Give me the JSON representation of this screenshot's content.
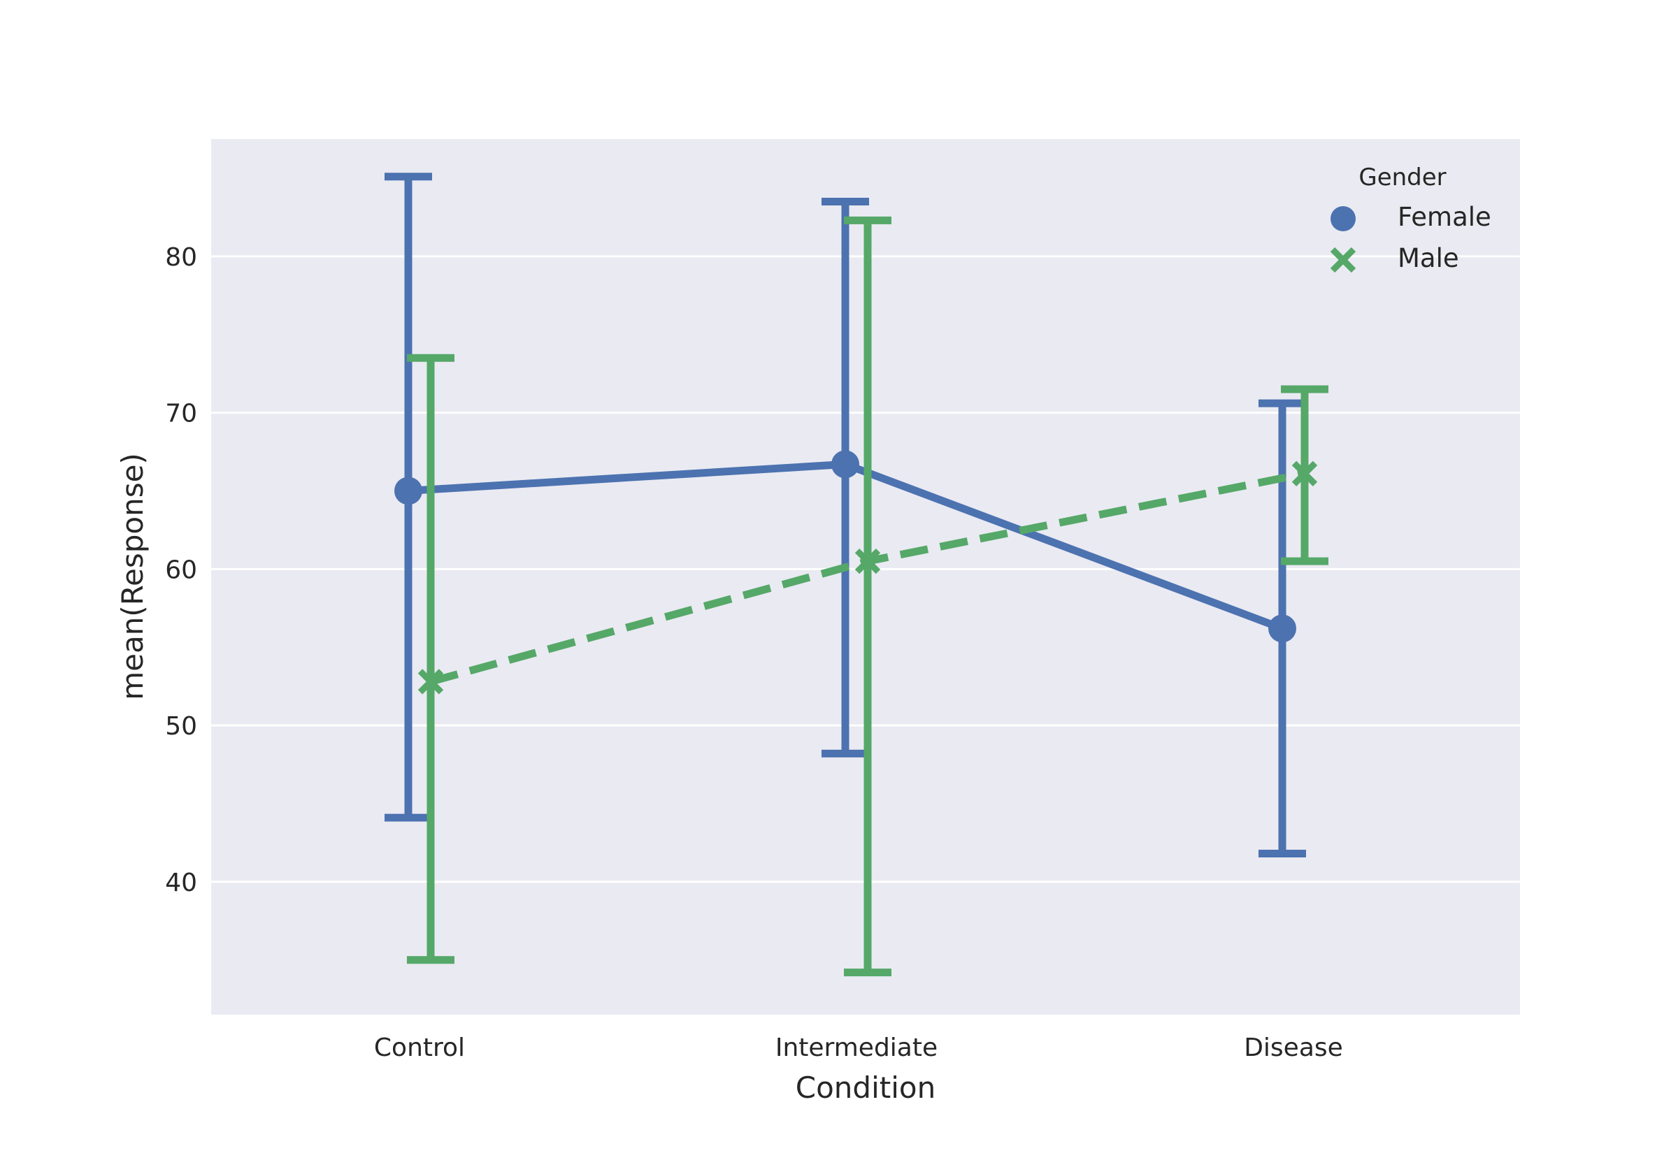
{
  "chart_data": {
    "type": "line",
    "xlabel": "Condition",
    "ylabel": "mean(Response)",
    "categories": [
      "Control",
      "Intermediate",
      "Disease"
    ],
    "ylim": [
      31.5,
      87.5
    ],
    "yticks": [
      40,
      50,
      60,
      70,
      80
    ],
    "grid": true,
    "legend": {
      "title": "Gender",
      "position": "top-right"
    },
    "series": [
      {
        "name": "Female",
        "marker": "circle",
        "linestyle": "solid",
        "color": "#4C72B0",
        "values": [
          65.0,
          66.7,
          56.2
        ],
        "ci_low": [
          44.1,
          48.2,
          41.8
        ],
        "ci_high": [
          85.1,
          83.5,
          70.6
        ]
      },
      {
        "name": "Male",
        "marker": "x",
        "linestyle": "dashed",
        "color": "#55A868",
        "values": [
          52.8,
          60.5,
          66.1
        ],
        "ci_low": [
          35.0,
          34.2,
          60.5
        ],
        "ci_high": [
          73.5,
          82.3,
          71.5
        ]
      }
    ],
    "colors": {
      "plot_background": "#EAEAF2",
      "grid": "#FFFFFF",
      "text": "#262626"
    }
  }
}
